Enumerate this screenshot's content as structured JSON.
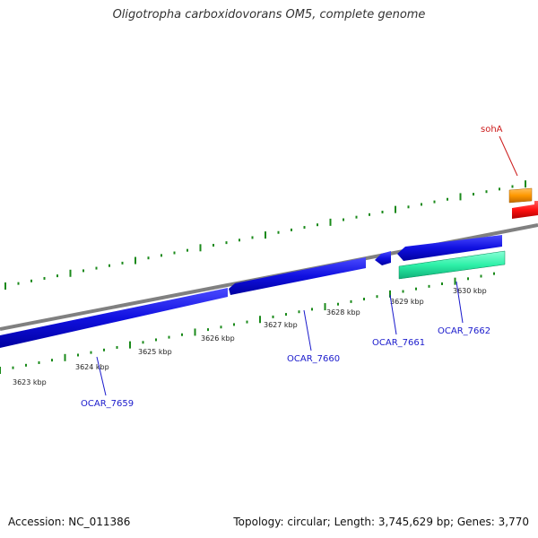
{
  "title": "Oligotropha carboxidovorans OM5, complete genome",
  "footer": {
    "accession": "Accession: NC_011386",
    "summary": "Topology: circular; Length: 3,745,629 bp; Genes: 3,770"
  },
  "scale": {
    "tick_labels": [
      "3623 kbp",
      "3624 kbp",
      "3625 kbp",
      "3626 kbp",
      "3627 kbp",
      "3628 kbp",
      "3629 kbp",
      "3630 kbp"
    ]
  },
  "genes": [
    {
      "id": "OCAR_7659",
      "label": "OCAR_7659",
      "strand": "reverse",
      "color": "#1010e0"
    },
    {
      "id": "OCAR_7660",
      "label": "OCAR_7660",
      "strand": "reverse",
      "color": "#1010e0"
    },
    {
      "id": "OCAR_7661",
      "label": "OCAR_7661",
      "strand": "reverse",
      "color": "#1010e0"
    },
    {
      "id": "OCAR_7662",
      "label": "OCAR_7662",
      "strand": "reverse",
      "color": "#1010e0"
    },
    {
      "id": "OCAR_7662b",
      "label": "",
      "strand": "forward",
      "color": "#2ef0a8"
    },
    {
      "id": "sohA",
      "label": "sohA",
      "strand": "forward",
      "color": "#ff2020"
    }
  ],
  "colors": {
    "backbone": "#808080",
    "tick": "#1a8a1a",
    "orange_feature": "#ff9900"
  }
}
